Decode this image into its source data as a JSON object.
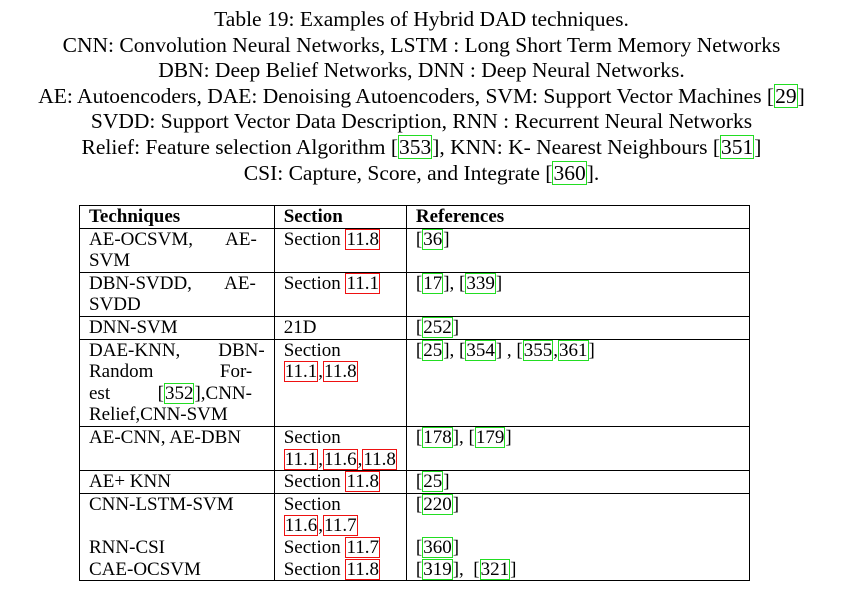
{
  "caption": {
    "line1": "Table 19: Examples of Hybrid DAD techniques.",
    "line2": "CNN: Convolution Neural Networks, LSTM : Long Short Term Memory Networks",
    "line3": "DBN: Deep Belief Networks, DNN : Deep Neural Networks.",
    "line4_text": "AE: Autoencoders, DAE: Denoising Autoencoders, SVM: Support Vector Machines [",
    "line4_ref": "29",
    "line4_end": "]",
    "line5": "SVDD: Support Vector Data Description, RNN : Recurrent Neural Networks",
    "line6_text": "Relief: Feature selection Algorithm [",
    "line6_ref1": "353",
    "line6_mid": "], KNN: K- Nearest Neighbours [",
    "line6_ref2": "351",
    "line6_end": "]",
    "line7_text": "CSI: Capture, Score, and Integrate [",
    "line7_ref": "360",
    "line7_end": "]."
  },
  "table": {
    "headers": [
      "Techniques",
      "Section",
      "References"
    ],
    "rows": [
      {
        "technique_l1": "AE-OCSVM,       AE-",
        "technique_l2": "SVM",
        "section_prefix": "Section ",
        "section_refs": [
          "11.8"
        ],
        "refs": [
          "36"
        ]
      },
      {
        "technique_l1": "DBN-SVDD,       AE-",
        "technique_l2": "SVDD",
        "section_prefix": "Section ",
        "section_refs": [
          "11.1"
        ],
        "refs": [
          "17",
          "339"
        ]
      },
      {
        "technique_l1": "DNN-SVM",
        "section_text": "21D",
        "refs": [
          "252"
        ]
      },
      {
        "technique_l1": "DAE-KNN,        DBN-",
        "technique_l2": "Random              For-",
        "technique_l3a": "est          [",
        "technique_l3_ref": "352",
        "technique_l3b": "],CNN-",
        "technique_l4": "Relief,CNN-SVM",
        "section_prefix": "Section",
        "section_refs": [
          "11.1",
          "11.8"
        ],
        "refs": [
          "25",
          "354",
          "355",
          "361"
        ]
      },
      {
        "technique_l1": "AE-CNN, AE-DBN",
        "section_prefix": "Section",
        "section_refs": [
          "11.1",
          "11.6",
          "11.8"
        ],
        "refs": [
          "178",
          "179"
        ]
      },
      {
        "technique_l1": "AE+ KNN",
        "section_prefix": "Section ",
        "section_refs": [
          "11.8"
        ],
        "refs": [
          "25"
        ]
      },
      {
        "technique_l1": "CNN-LSTM-SVM",
        "section_prefix": "Section",
        "section_refs": [
          "11.6",
          "11.7"
        ],
        "refs": [
          "220"
        ]
      },
      {
        "technique_l1": "RNN-CSI",
        "section_prefix": "Section ",
        "section_refs": [
          "11.7"
        ],
        "refs": [
          "360"
        ]
      },
      {
        "technique_l1": "CAE-OCSVM",
        "section_prefix": "Section ",
        "section_refs": [
          "11.8"
        ],
        "refs": [
          "319",
          "321"
        ]
      }
    ]
  },
  "colors": {
    "citation_box": "#22dd22",
    "section_box": "#ee1111"
  }
}
